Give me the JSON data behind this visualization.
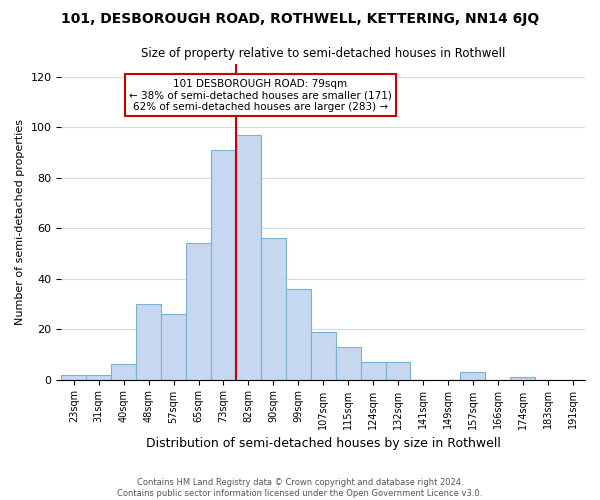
{
  "title": "101, DESBOROUGH ROAD, ROTHWELL, KETTERING, NN14 6JQ",
  "subtitle": "Size of property relative to semi-detached houses in Rothwell",
  "xlabel": "Distribution of semi-detached houses by size in Rothwell",
  "ylabel": "Number of semi-detached properties",
  "bin_labels": [
    "23sqm",
    "31sqm",
    "40sqm",
    "48sqm",
    "57sqm",
    "65sqm",
    "73sqm",
    "82sqm",
    "90sqm",
    "99sqm",
    "107sqm",
    "115sqm",
    "124sqm",
    "132sqm",
    "141sqm",
    "149sqm",
    "157sqm",
    "166sqm",
    "174sqm",
    "183sqm",
    "191sqm"
  ],
  "bar_heights": [
    2,
    2,
    6,
    30,
    26,
    54,
    91,
    97,
    56,
    36,
    19,
    13,
    7,
    7,
    0,
    0,
    3,
    0,
    1,
    0,
    0
  ],
  "bar_color": "#c5d8f0",
  "bar_edge_color": "#7bafd4",
  "property_line_index": 7,
  "property_line_label": "101 DESBOROUGH ROAD: 79sqm",
  "pct_smaller": 38,
  "pct_smaller_count": 171,
  "pct_larger": 62,
  "pct_larger_count": 283,
  "line_color": "#cc0000",
  "annotation_box_edge": "#cc0000",
  "ylim": [
    0,
    125
  ],
  "yticks": [
    0,
    20,
    40,
    60,
    80,
    100,
    120
  ],
  "footer_line1": "Contains HM Land Registry data © Crown copyright and database right 2024.",
  "footer_line2": "Contains public sector information licensed under the Open Government Licence v3.0."
}
